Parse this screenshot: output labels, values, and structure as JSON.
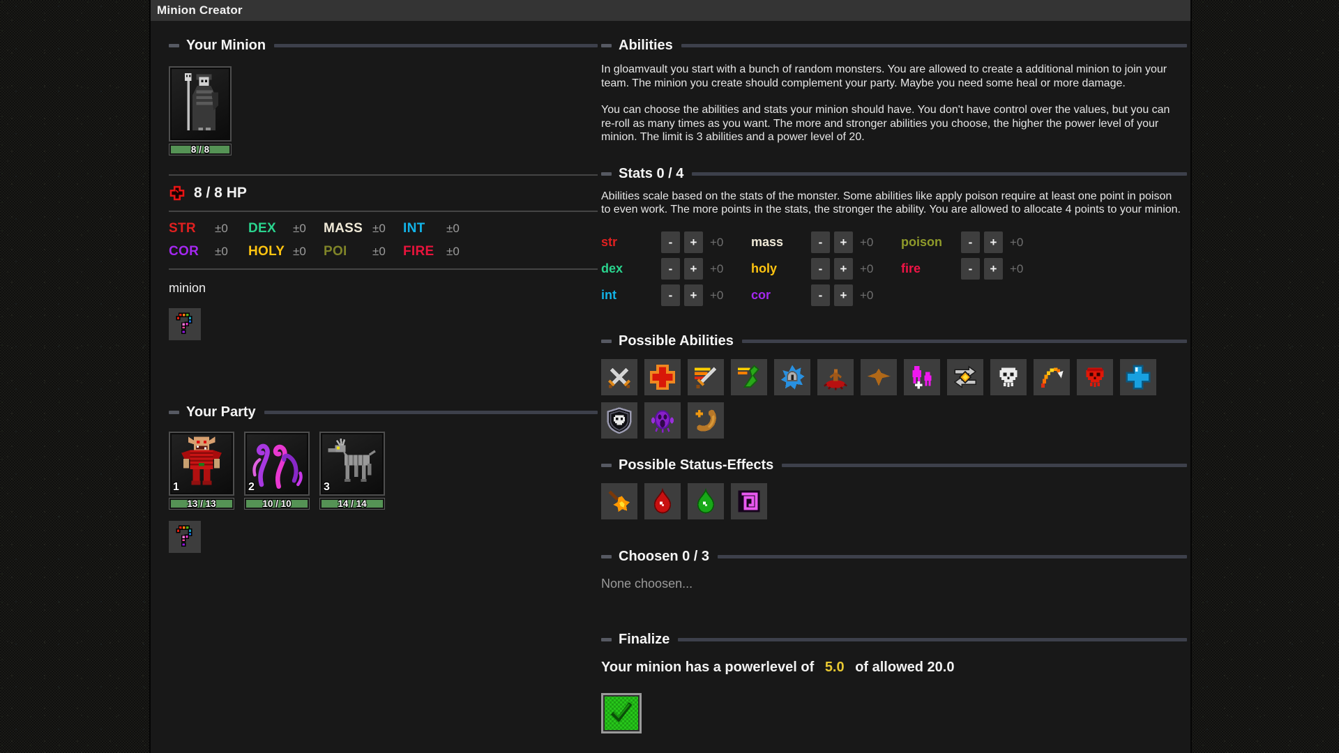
{
  "window": {
    "title": "Minion Creator"
  },
  "your_minion": {
    "header": "Your Minion",
    "portrait_icon": "robed-skeleton-icon",
    "hp_bar": "8 / 8",
    "hp_icon": "health-cross-icon",
    "hp_line": "8 / 8 HP",
    "name_label": "minion",
    "random_tile_icon": "rainbow-question-icon",
    "stats": [
      {
        "label": "STR",
        "value": "±0",
        "color": "#e02020"
      },
      {
        "label": "DEX",
        "value": "±0",
        "color": "#2ad48e"
      },
      {
        "label": "MASS",
        "value": "±0",
        "color": "#f0ead8"
      },
      {
        "label": "INT",
        "value": "±0",
        "color": "#12b4e8"
      },
      {
        "label": "COR",
        "value": "±0",
        "color": "#a428f0"
      },
      {
        "label": "HOLY",
        "value": "±0",
        "color": "#ffc410"
      },
      {
        "label": "POI",
        "value": "±0",
        "color": "#7f8428"
      },
      {
        "label": "FIRE",
        "value": "±0",
        "color": "#e8143c"
      }
    ]
  },
  "your_party": {
    "header": "Your Party",
    "members": [
      {
        "number": "1",
        "hp": "13 / 13",
        "portrait_icon": "red-orc-icon"
      },
      {
        "number": "2",
        "hp": "10 / 10",
        "portrait_icon": "purple-tentacles-icon"
      },
      {
        "number": "3",
        "hp": "14 / 14",
        "portrait_icon": "skeletal-goat-icon"
      }
    ],
    "random_tile_icon": "rainbow-question-icon"
  },
  "abilities": {
    "header": "Abilities",
    "paragraph1": "In gloamvault you start with a bunch of random monsters. You are allowed to create a additional minion to join your team. The minion you create should complement your party. Maybe you need some heal or more damage.",
    "paragraph2": "You can choose the abilities and stats your minion should have. You don't have control over the values, but you can re-roll as many times as you want. The more and stronger abilities you choose, the higher the power level of your minion. The limit is 3 abilities and a power level of 20."
  },
  "stats_section": {
    "header": "Stats 0 / 4",
    "description": "Abilities scale based on the stats of the monster. Some abilities like apply poison require at least one point in poison to even work. The more points in the stats, the stronger the ability. You are allowed to allocate 4 points to your minion.",
    "minus_label": "-",
    "plus_label": "+",
    "groups": [
      [
        {
          "label": "str",
          "color": "#e02020",
          "value": "+0"
        },
        {
          "label": "dex",
          "color": "#2ad48e",
          "value": "+0"
        },
        {
          "label": "int",
          "color": "#12b4e8",
          "value": "+0"
        }
      ],
      [
        {
          "label": "mass",
          "color": "#f0ead8",
          "value": "+0"
        },
        {
          "label": "holy",
          "color": "#ffc410",
          "value": "+0"
        },
        {
          "label": "cor",
          "color": "#a428f0",
          "value": "+0"
        }
      ],
      [
        {
          "label": "poison",
          "color": "#8f9a2a",
          "value": "+0"
        },
        {
          "label": "fire",
          "color": "#f01446",
          "value": "+0"
        }
      ]
    ]
  },
  "possible_abilities": {
    "header": "Possible Abilities",
    "icons": [
      "crossed-swords-icon",
      "heal-cross-icon",
      "power-strike-icon",
      "kick-icon",
      "defend-helmet-icon",
      "summon-imp-icon",
      "bird-icon",
      "charm-clone-icon",
      "swap-icon",
      "skull-icon",
      "fire-lob-icon",
      "red-skull-icon",
      "blue-cross-icon",
      "skull-shield-icon",
      "scream-icon",
      "summon-worm-icon"
    ]
  },
  "possible_status_effects": {
    "header": "Possible Status-Effects",
    "icons": [
      "flame-splat-icon",
      "blood-drop-icon",
      "poison-drop-icon",
      "magic-spiral-icon"
    ]
  },
  "chosen": {
    "header": "Choosen 0 / 3",
    "empty_text": "None choosen..."
  },
  "finalize": {
    "header": "Finalize",
    "text_before": "Your minion has a powerlevel of",
    "powerlevel": "5.0",
    "powerlevel_color": "#e8c832",
    "text_after": "of allowed 20.0",
    "confirm_icon": "green-checkmark-icon"
  }
}
